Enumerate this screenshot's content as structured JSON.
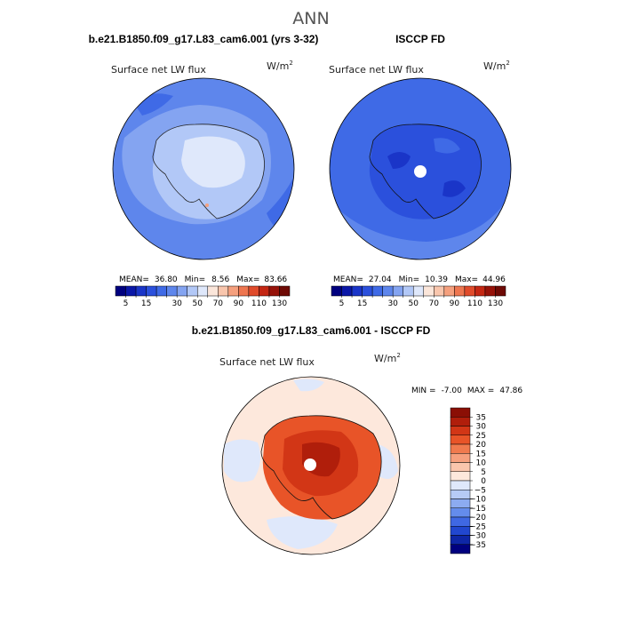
{
  "title": "ANN",
  "chart_data": [
    {
      "type": "heatmap",
      "projection": "south-polar-stereographic",
      "case_title": "b.e21.B1850.f09_g17.L83_cam6.001 (yrs 3-32)",
      "variable": "Surface net LW flux",
      "units": "W/m",
      "units_exp": "2",
      "stats": {
        "mean_label": "MEAN=",
        "mean": "36.80",
        "min_label": "Min=",
        "min": "8.56",
        "max_label": "Max=",
        "max": "83.66"
      },
      "colorbar": {
        "orientation": "horizontal",
        "levels": [
          5,
          10,
          15,
          20,
          25,
          30,
          40,
          50,
          60,
          70,
          80,
          90,
          100,
          110,
          120,
          130
        ],
        "tick_labels": [
          "5",
          "15",
          "30",
          "50",
          "70",
          "90",
          "110",
          "130"
        ],
        "colors": [
          "#00007f",
          "#0a17a8",
          "#1a35c8",
          "#2b50dc",
          "#3f6ae6",
          "#5e86ec",
          "#84a4f1",
          "#b2c8f7",
          "#dfe8fb",
          "#fbe6da",
          "#f9c6ad",
          "#f5a07e",
          "#ee7650",
          "#e04b2b",
          "#c42713",
          "#961209",
          "#6e0a05"
        ]
      }
    },
    {
      "type": "heatmap",
      "projection": "south-polar-stereographic",
      "case_title": "ISCCP FD",
      "variable": "Surface net LW flux",
      "units": "W/m",
      "units_exp": "2",
      "stats": {
        "mean_label": "MEAN=",
        "mean": "27.04",
        "min_label": "Min=",
        "min": "10.39",
        "max_label": "Max=",
        "max": "44.96"
      },
      "colorbar": {
        "orientation": "horizontal",
        "levels": [
          5,
          10,
          15,
          20,
          25,
          30,
          40,
          50,
          60,
          70,
          80,
          90,
          100,
          110,
          120,
          130
        ],
        "tick_labels": [
          "5",
          "15",
          "30",
          "50",
          "70",
          "90",
          "110",
          "130"
        ],
        "colors": [
          "#00007f",
          "#0a17a8",
          "#1a35c8",
          "#2b50dc",
          "#3f6ae6",
          "#5e86ec",
          "#84a4f1",
          "#b2c8f7",
          "#dfe8fb",
          "#fbe6da",
          "#f9c6ad",
          "#f5a07e",
          "#ee7650",
          "#e04b2b",
          "#c42713",
          "#961209",
          "#6e0a05"
        ]
      }
    },
    {
      "type": "heatmap",
      "projection": "south-polar-stereographic",
      "case_title": "b.e21.B1850.f09_g17.L83_cam6.001 - ISCCP FD",
      "variable": "Surface net LW flux",
      "units": "W/m",
      "units_exp": "2",
      "stats": {
        "min_label": "MIN =",
        "min": "-7.00",
        "max_label": "MAX =",
        "max": "47.86"
      },
      "colorbar": {
        "orientation": "vertical",
        "levels": [
          35,
          30,
          25,
          20,
          15,
          10,
          5,
          0,
          -5,
          -10,
          -15,
          -20,
          -25,
          -30,
          -35
        ],
        "tick_labels": [
          "35",
          "30",
          "25",
          "20",
          "15",
          "10",
          "5",
          "0",
          "−5",
          "−10",
          "−15",
          "−20",
          "−25",
          "−30",
          "−35"
        ],
        "colors": [
          "#8b0f05",
          "#b01e0b",
          "#d23616",
          "#e85428",
          "#f07a4e",
          "#f6a07e",
          "#fac6ad",
          "#fde8dc",
          "#dfe8fb",
          "#b6cbf6",
          "#8cabf1",
          "#648cec",
          "#3f68e3",
          "#2147cf",
          "#0e26a6",
          "#00007f"
        ]
      }
    }
  ]
}
